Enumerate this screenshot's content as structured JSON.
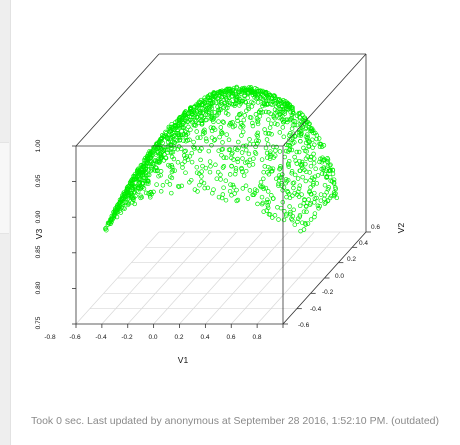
{
  "chart_data": {
    "type": "scatter",
    "title": "",
    "xlabel": "V1",
    "ylabel": "V3",
    "zlabel": "V2",
    "x_ticks": [
      "-0.8",
      "-0.6",
      "-0.4",
      "-0.2",
      "0.0",
      "0.2",
      "0.4",
      "0.6",
      "0.8"
    ],
    "v3_ticks": [
      "0.75",
      "0.80",
      "0.85",
      "0.90",
      "0.95",
      "1.00"
    ],
    "v2_ticks": [
      "-0.6",
      "-0.4",
      "-0.2",
      "0.0",
      "0.2",
      "0.4",
      "0.6"
    ],
    "xlim": [
      -0.8,
      0.8
    ],
    "v2lim": [
      -0.6,
      0.6
    ],
    "v3lim": [
      0.75,
      1.0
    ],
    "surface": "V3 ≈ 1 - 0.25·V1² (paraboloid cap of points)",
    "point_count_approx": 2000,
    "marker": "open-circle",
    "point_color": "#00ee00",
    "grid": true,
    "projection": "perspective-3d-box"
  },
  "status": {
    "text": "Took 0 sec. Last updated by anonymous at September 28 2016, 1:52:10 PM. (outdated)",
    "color": "#8a8a8a"
  }
}
